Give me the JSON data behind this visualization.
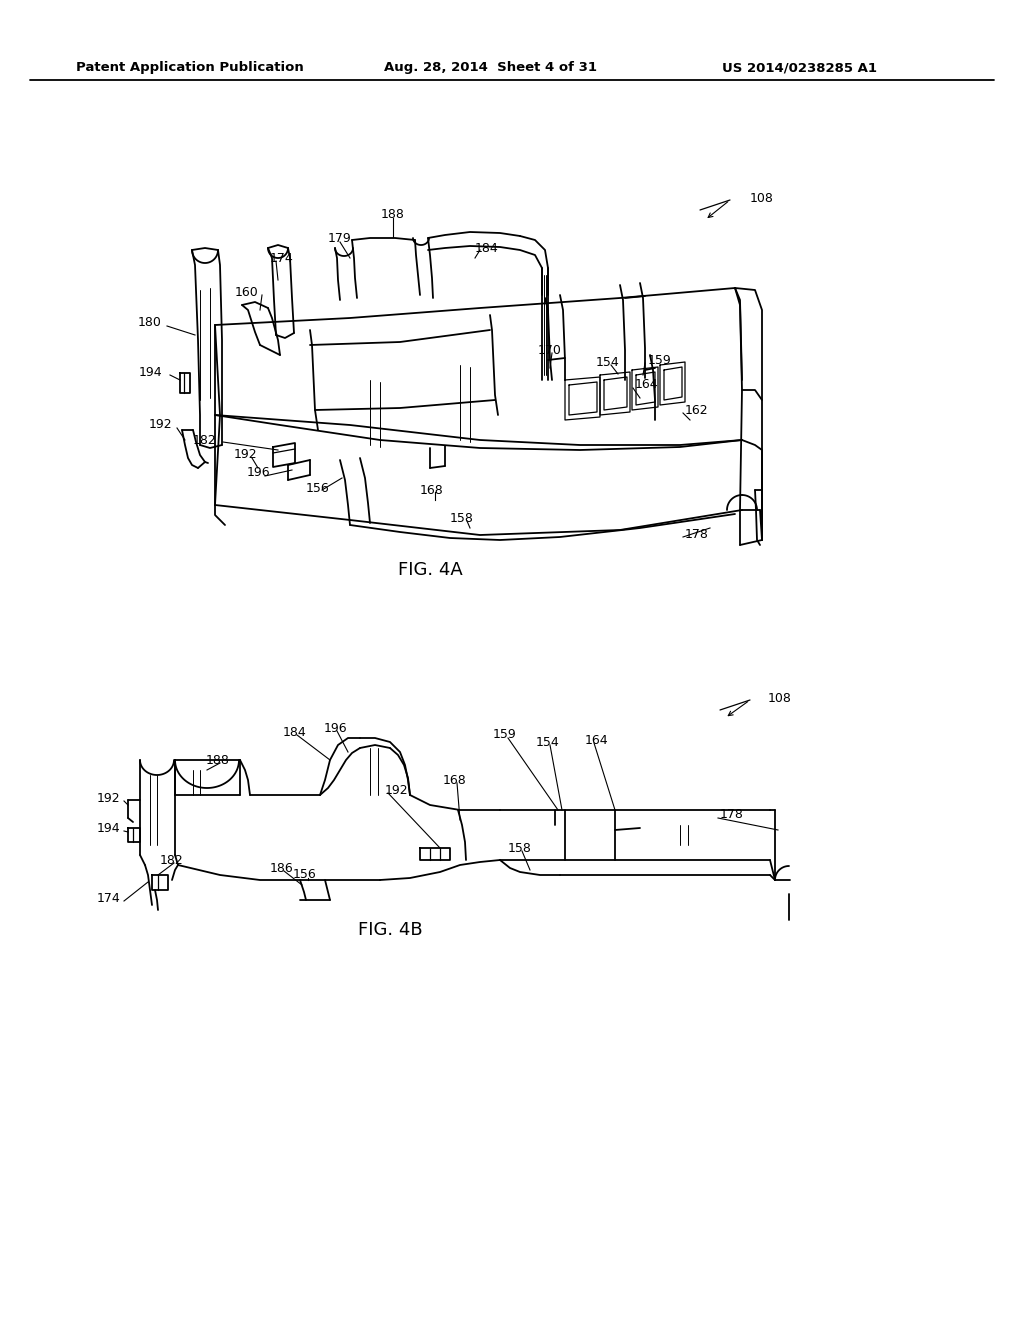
{
  "bg_color": "#ffffff",
  "header_left": "Patent Application Publication",
  "header_mid": "Aug. 28, 2014  Sheet 4 of 31",
  "header_right": "US 2014/0238285 A1",
  "fig4a_label": "FIG. 4A",
  "fig4b_label": "FIG. 4B",
  "header_fontsize": 9.5,
  "label_fontsize": 9.0,
  "fig_label_fontsize": 13,
  "part_fontsize": 9.0
}
